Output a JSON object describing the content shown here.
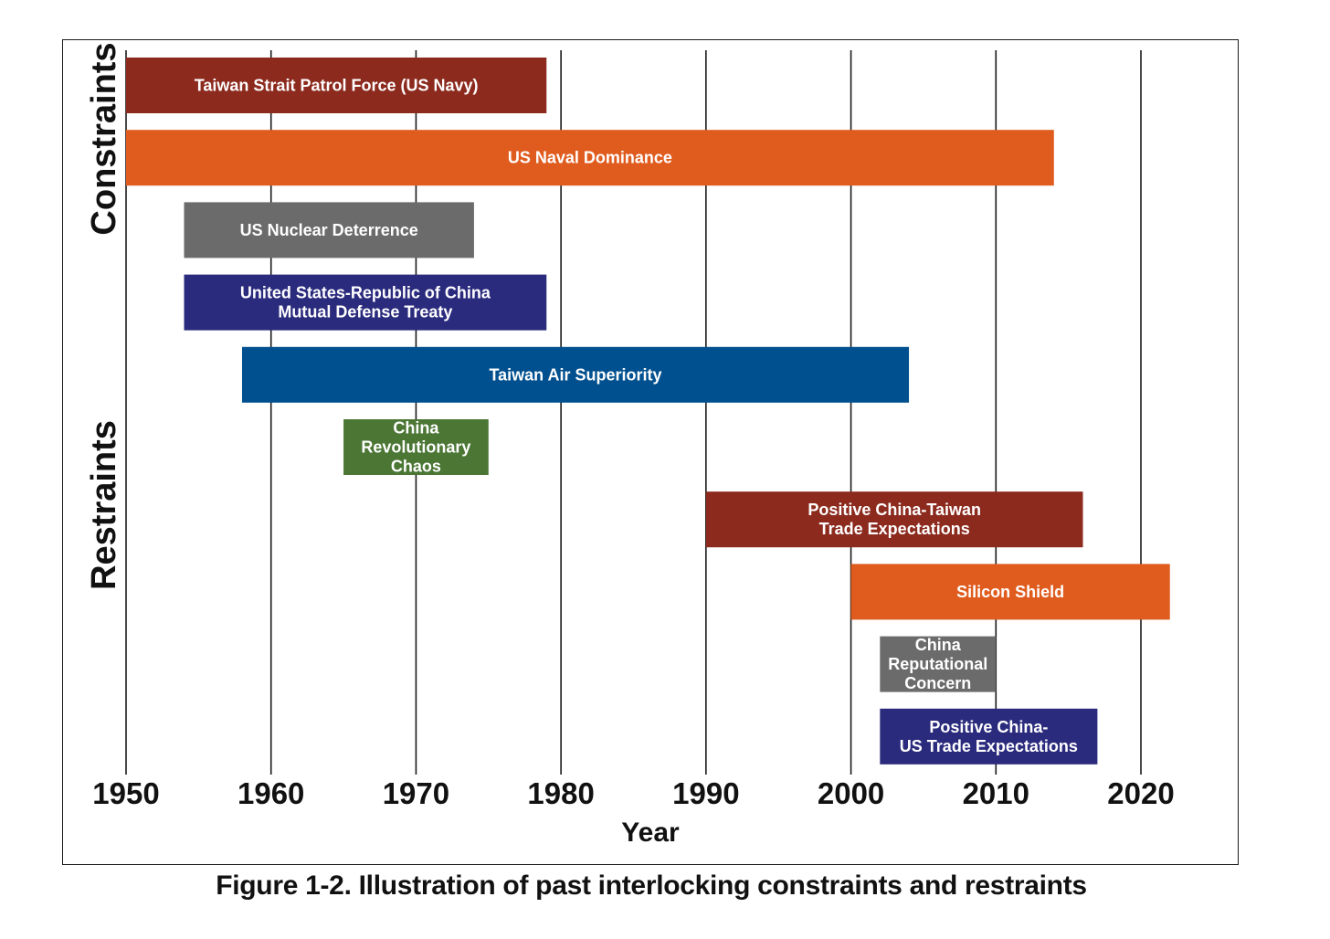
{
  "caption": "Figure 1-2. Illustration of past interlocking constraints and restraints",
  "chart_data": {
    "type": "timeline",
    "xlabel": "Year",
    "xlim": [
      1950,
      2022
    ],
    "xticks": [
      1950,
      1960,
      1970,
      1980,
      1990,
      2000,
      2010,
      2020
    ],
    "grid": true,
    "side_labels": [
      "Constraints",
      "Restraints"
    ],
    "bars": [
      {
        "label": [
          "Taiwan Strait Patrol Force (US Navy)"
        ],
        "start": 1950,
        "end": 1979,
        "color": "#8c2a1e"
      },
      {
        "label": [
          "US Naval Dominance"
        ],
        "start": 1950,
        "end": 2014,
        "color": "#e05c1e"
      },
      {
        "label": [
          "US Nuclear Deterrence"
        ],
        "start": 1954,
        "end": 1974,
        "color": "#6b6b6b"
      },
      {
        "label": [
          "United States-Republic of China",
          "Mutual Defense Treaty"
        ],
        "start": 1954,
        "end": 1979,
        "color": "#2b2b7e"
      },
      {
        "label": [
          "Taiwan Air Superiority"
        ],
        "start": 1958,
        "end": 2004,
        "color": "#00508f"
      },
      {
        "label": [
          "China",
          "Revolutionary",
          "Chaos"
        ],
        "start": 1965,
        "end": 1975,
        "color": "#4b7634"
      },
      {
        "label": [
          "Positive China-Taiwan",
          "Trade Expectations"
        ],
        "start": 1990,
        "end": 2016,
        "color": "#8c2a1e"
      },
      {
        "label": [
          "Silicon Shield"
        ],
        "start": 2000,
        "end": 2022,
        "color": "#e05c1e"
      },
      {
        "label": [
          "China",
          "Reputational",
          "Concern"
        ],
        "start": 2002,
        "end": 2010,
        "color": "#6b6b6b"
      },
      {
        "label": [
          "Positive China-",
          "US Trade Expectations"
        ],
        "start": 2002,
        "end": 2017,
        "color": "#2b2b7e"
      }
    ]
  }
}
